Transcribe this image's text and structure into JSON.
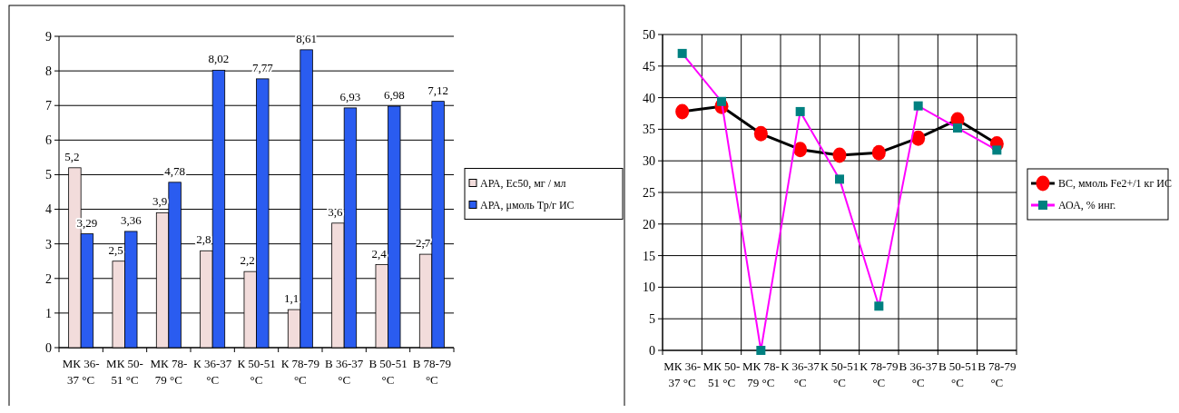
{
  "chart_data": [
    {
      "type": "bar",
      "categories": [
        "МК 36-37 °С",
        "МК 50-51 °С",
        "МК 78-79 °С",
        "К 36-37 °С",
        "К 50-51 °С",
        "К 78-79 °С",
        "В 36-37 °С",
        "В 50-51 °С",
        "В 78-79 °С"
      ],
      "series": [
        {
          "name": "АРА, Ес50, мг / мл",
          "color": "#f2dcdb",
          "values": [
            5.2,
            2.5,
            3.9,
            2.8,
            2.2,
            1.1,
            3.6,
            2.4,
            2.7
          ],
          "value_labels": [
            "5,2",
            "2,5",
            "3,9",
            "2,8",
            "2,2",
            "1,1",
            "3,6",
            "2,4",
            "2,7"
          ]
        },
        {
          "name": "АРА,  μмоль Тр/г ИС",
          "color": "#2a5cf0",
          "values": [
            3.29,
            3.36,
            4.78,
            8.02,
            7.77,
            8.61,
            6.93,
            6.98,
            7.12
          ],
          "value_labels": [
            "3,29",
            "3,36",
            "4,78",
            "8,02",
            "7,77",
            "8,61",
            "6,93",
            "6,98",
            "7,12"
          ]
        }
      ],
      "ylim": [
        0,
        9
      ],
      "yticks": [
        0,
        1,
        2,
        3,
        4,
        5,
        6,
        7,
        8,
        9
      ],
      "grid": "y",
      "legend": "right"
    },
    {
      "type": "line",
      "categories": [
        "МК 36-37 °С",
        "МК 50-51 °С",
        "МК 78-79 °С",
        "К 36-37 °С",
        "К 50-51 °С",
        "К 78-79 °С",
        "В 36-37 °С",
        "В 50-51 °С",
        "В 78-79 °С"
      ],
      "series": [
        {
          "name": "ВС, ммоль Fe2+/1 кг ИС",
          "color": "#000000",
          "marker": "circle",
          "values": [
            37.8,
            38.6,
            34.3,
            31.8,
            30.9,
            31.3,
            33.6,
            36.5,
            32.7
          ]
        },
        {
          "name": "АОА, % инг.",
          "color": "#ff00ff",
          "marker": "square",
          "values": [
            47,
            39.4,
            0,
            37.8,
            27.1,
            7,
            38.7,
            35.2,
            31.7
          ]
        }
      ],
      "ylim": [
        0,
        50
      ],
      "yticks": [
        0,
        5,
        10,
        15,
        20,
        25,
        30,
        35,
        40,
        45,
        50
      ],
      "grid": true,
      "legend": "right"
    }
  ]
}
